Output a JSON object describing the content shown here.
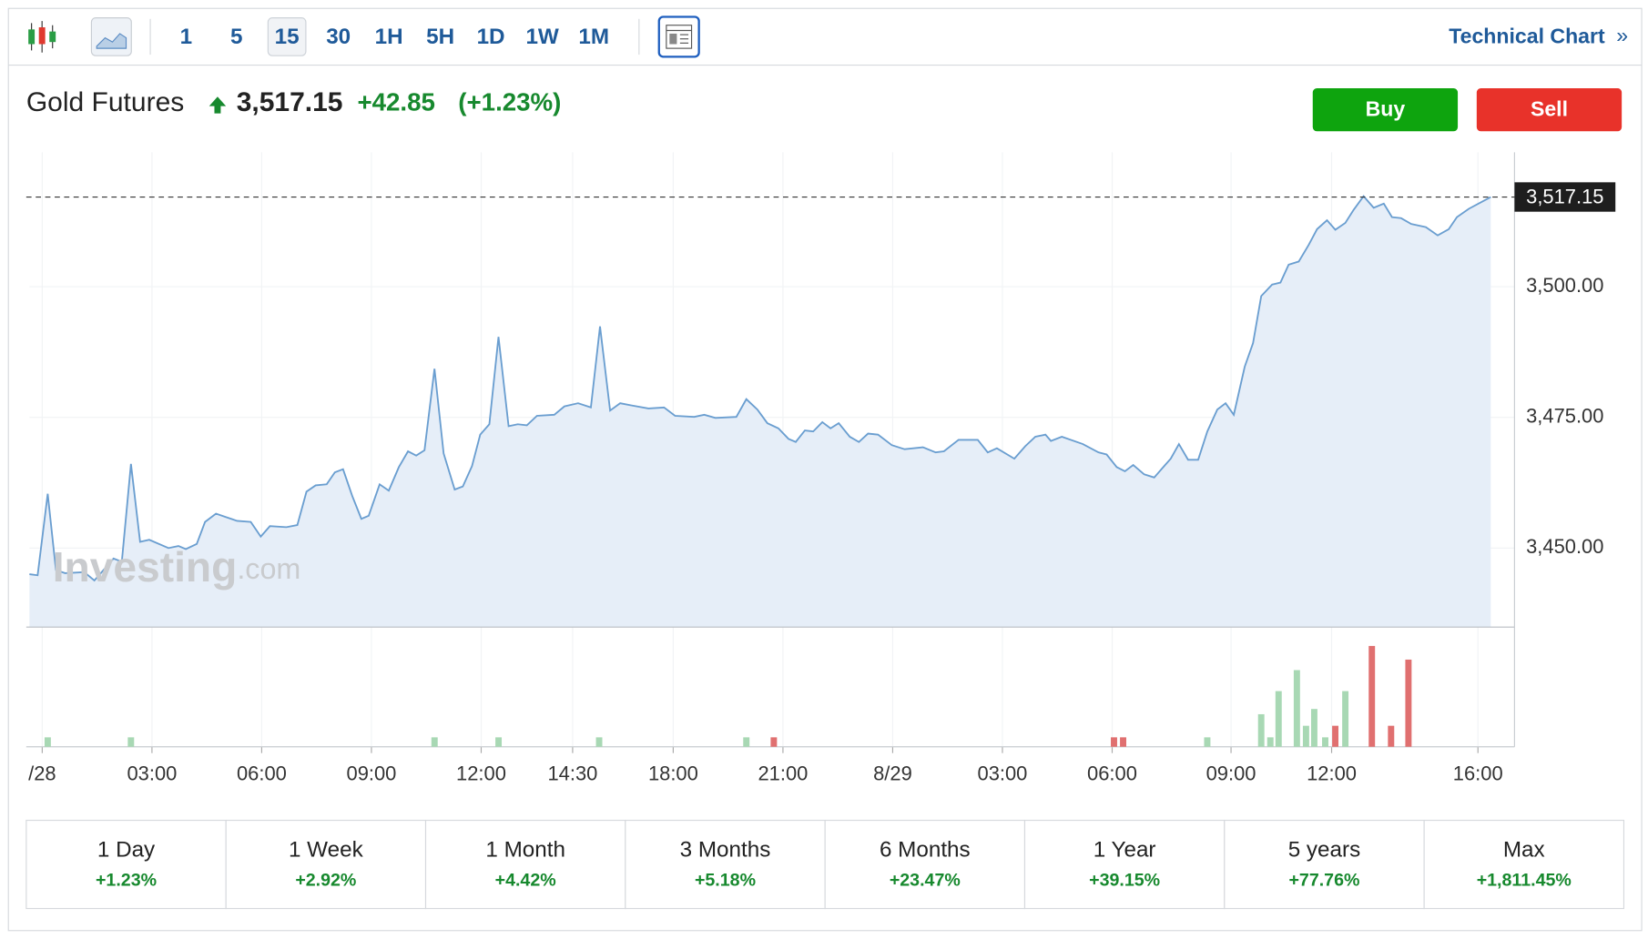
{
  "toolbar": {
    "intervals": [
      "1",
      "5",
      "15",
      "30",
      "1H",
      "5H",
      "1D",
      "1W",
      "1M"
    ],
    "active_interval": 2,
    "link": "Technical Chart",
    "link_arrow": "»"
  },
  "header": {
    "name": "Gold Futures",
    "price": "3,517.15",
    "change": "+42.85",
    "change_pct": "(+1.23%)"
  },
  "actions": [
    "Buy",
    "Sell"
  ],
  "chart_data": {
    "type": "line",
    "color": "#6a9ed0",
    "fill": "#e6eef8",
    "watermark": {
      "brand": "Investing",
      "suffix": ".com"
    },
    "x": [
      -1.4,
      -0.5,
      0.6,
      1.5,
      2.5,
      4.6,
      5.7,
      7.8,
      8.7,
      9.7,
      10.7,
      11.7,
      13.8,
      14.9,
      15.7,
      16.9,
      17.8,
      19.0,
      20.0,
      21.3,
      22.8,
      23.9,
      24.9,
      26.7,
      27.9,
      28.9,
      29.9,
      31.1,
      32.0,
      32.9,
      33.9,
      34.9,
      35.7,
      36.9,
      37.9,
      39.0,
      40.0,
      40.9,
      41.8,
      42.9,
      43.9,
      45.1,
      46.0,
      47.0,
      47.9,
      48.9,
      49.9,
      51.0,
      52.0,
      53.0,
      54.1,
      56.0,
      57.1,
      58.6,
      60.0,
      61.0,
      62.1,
      63.2,
      64.4,
      66.3,
      68.0,
      69.2,
      71.3,
      72.4,
      73.6,
      75.9,
      77.0,
      78.2,
      79.3,
      80.5,
      81.6,
      82.4,
      83.4,
      84.3,
      85.3,
      86.2,
      87.1,
      88.3,
      89.3,
      90.3,
      91.4,
      92.9,
      94.3,
      96.3,
      97.7,
      98.6,
      100.2,
      102.3,
      103.4,
      104.4,
      106.3,
      107.5,
      108.6,
      109.7,
      110.3,
      111.5,
      113.8,
      115.5,
      116.4,
      117.5,
      118.4,
      119.3,
      120.5,
      121.6,
      122.8,
      123.4,
      124.3,
      125.3,
      126.4,
      127.4,
      128.5,
      129.4,
      130.3,
      131.5,
      132.4,
      133.3,
      134.5,
      135.4,
      136.3,
      137.4,
      138.5,
      139.4,
      140.5,
      141.4,
      142.5,
      143.4,
      144.5,
      145.6,
      146.7,
      147.6,
      148.6,
      149.7,
      151.3,
      152.6,
      153.8,
      154.7,
      156.0,
      157.5,
      158.4
    ],
    "values": [
      3445.0,
      3444.8,
      3460.4,
      3445.8,
      3445.2,
      3445.4,
      3443.8,
      3448.0,
      3447.4,
      3466.1,
      3451.2,
      3451.6,
      3450.0,
      3450.4,
      3449.8,
      3450.8,
      3455.0,
      3456.6,
      3456.0,
      3455.2,
      3455.0,
      3452.2,
      3454.2,
      3454.0,
      3454.4,
      3460.8,
      3462.0,
      3462.2,
      3464.5,
      3465.1,
      3460.0,
      3455.6,
      3456.2,
      3462.2,
      3461.0,
      3465.5,
      3468.5,
      3467.7,
      3468.7,
      3484.3,
      3468.1,
      3461.2,
      3461.8,
      3465.7,
      3471.7,
      3473.7,
      3490.4,
      3473.3,
      3473.7,
      3473.5,
      3475.3,
      3475.5,
      3477.1,
      3477.7,
      3476.9,
      3492.4,
      3476.3,
      3477.7,
      3477.3,
      3476.7,
      3476.9,
      3475.3,
      3475.1,
      3475.5,
      3474.9,
      3475.1,
      3478.5,
      3476.5,
      3473.9,
      3472.9,
      3470.9,
      3470.3,
      3472.5,
      3472.3,
      3474.1,
      3472.9,
      3473.9,
      3471.3,
      3470.3,
      3471.9,
      3471.7,
      3469.7,
      3468.9,
      3469.3,
      3468.3,
      3468.5,
      3470.7,
      3470.7,
      3468.3,
      3469.1,
      3467.1,
      3469.5,
      3471.3,
      3471.7,
      3470.5,
      3471.3,
      3469.9,
      3468.3,
      3467.9,
      3465.5,
      3464.7,
      3465.9,
      3464.1,
      3463.5,
      3465.9,
      3467.1,
      3469.9,
      3466.9,
      3466.9,
      3472.3,
      3476.5,
      3477.7,
      3475.5,
      3484.7,
      3489.2,
      3498.2,
      3500.4,
      3500.8,
      3504.2,
      3504.8,
      3508.0,
      3511.0,
      3512.7,
      3510.9,
      3512.2,
      3514.7,
      3517.3,
      3515.1,
      3515.9,
      3513.3,
      3513.1,
      3512.0,
      3511.4,
      3509.8,
      3511.0,
      3513.3,
      3514.9,
      3516.3,
      3517.15
    ],
    "xlim": [
      -1.4,
      161
    ],
    "ylim": [
      3434.9,
      3525.7
    ],
    "yticks": [
      {
        "value": 3450,
        "label": "3,450.00"
      },
      {
        "value": 3475,
        "label": "3,475.00"
      },
      {
        "value": 3500,
        "label": "3,500.00"
      }
    ],
    "xticks": [
      {
        "value": 0,
        "label": "/28"
      },
      {
        "value": 12,
        "label": "03:00"
      },
      {
        "value": 24,
        "label": "06:00"
      },
      {
        "value": 36,
        "label": "09:00"
      },
      {
        "value": 48,
        "label": "12:00"
      },
      {
        "value": 58,
        "label": "14:30"
      },
      {
        "value": 69,
        "label": "18:00"
      },
      {
        "value": 81,
        "label": "21:00"
      },
      {
        "value": 93,
        "label": "8/29"
      },
      {
        "value": 105,
        "label": "03:00"
      },
      {
        "value": 117,
        "label": "06:00"
      },
      {
        "value": 130,
        "label": "09:00"
      },
      {
        "value": 141,
        "label": "12:00"
      },
      {
        "value": 157,
        "label": "16:00"
      }
    ],
    "grid": true,
    "reference_line": {
      "value": 3517.15,
      "label": "3,517.15"
    },
    "volume": {
      "ylim": [
        0,
        111
      ],
      "x": [
        0.6,
        9.7,
        42.9,
        49.9,
        60.9,
        77.0,
        80.0,
        117.2,
        118.2,
        127.4,
        133.3,
        134.3,
        135.2,
        137.2,
        138.2,
        139.1,
        140.3,
        141.4,
        142.5,
        145.4,
        147.5,
        149.4
      ],
      "values": [
        9,
        9,
        9,
        9,
        9,
        9,
        9,
        9,
        9,
        9,
        31,
        9,
        53,
        73,
        20,
        36,
        9,
        20,
        53,
        96,
        20,
        83
      ],
      "colors": [
        "#a8d8b4",
        "#a8d8b4",
        "#a8d8b4",
        "#a8d8b4",
        "#a8d8b4",
        "#a8d8b4",
        "#e07070",
        "#e07070",
        "#e07070",
        "#a8d8b4",
        "#a8d8b4",
        "#a8d8b4",
        "#a8d8b4",
        "#a8d8b4",
        "#a8d8b4",
        "#a8d8b4",
        "#a8d8b4",
        "#e07070",
        "#a8d8b4",
        "#e07070",
        "#e07070",
        "#e07070"
      ]
    }
  },
  "periods": [
    {
      "label": "1 Day",
      "change": "+1.23%"
    },
    {
      "label": "1 Week",
      "change": "+2.92%"
    },
    {
      "label": "1 Month",
      "change": "+4.42%"
    },
    {
      "label": "3 Months",
      "change": "+5.18%"
    },
    {
      "label": "6 Months",
      "change": "+23.47%"
    },
    {
      "label": "1 Year",
      "change": "+39.15%"
    },
    {
      "label": "5 years",
      "change": "+77.76%"
    },
    {
      "label": "Max",
      "change": "+1,811.45%"
    }
  ]
}
